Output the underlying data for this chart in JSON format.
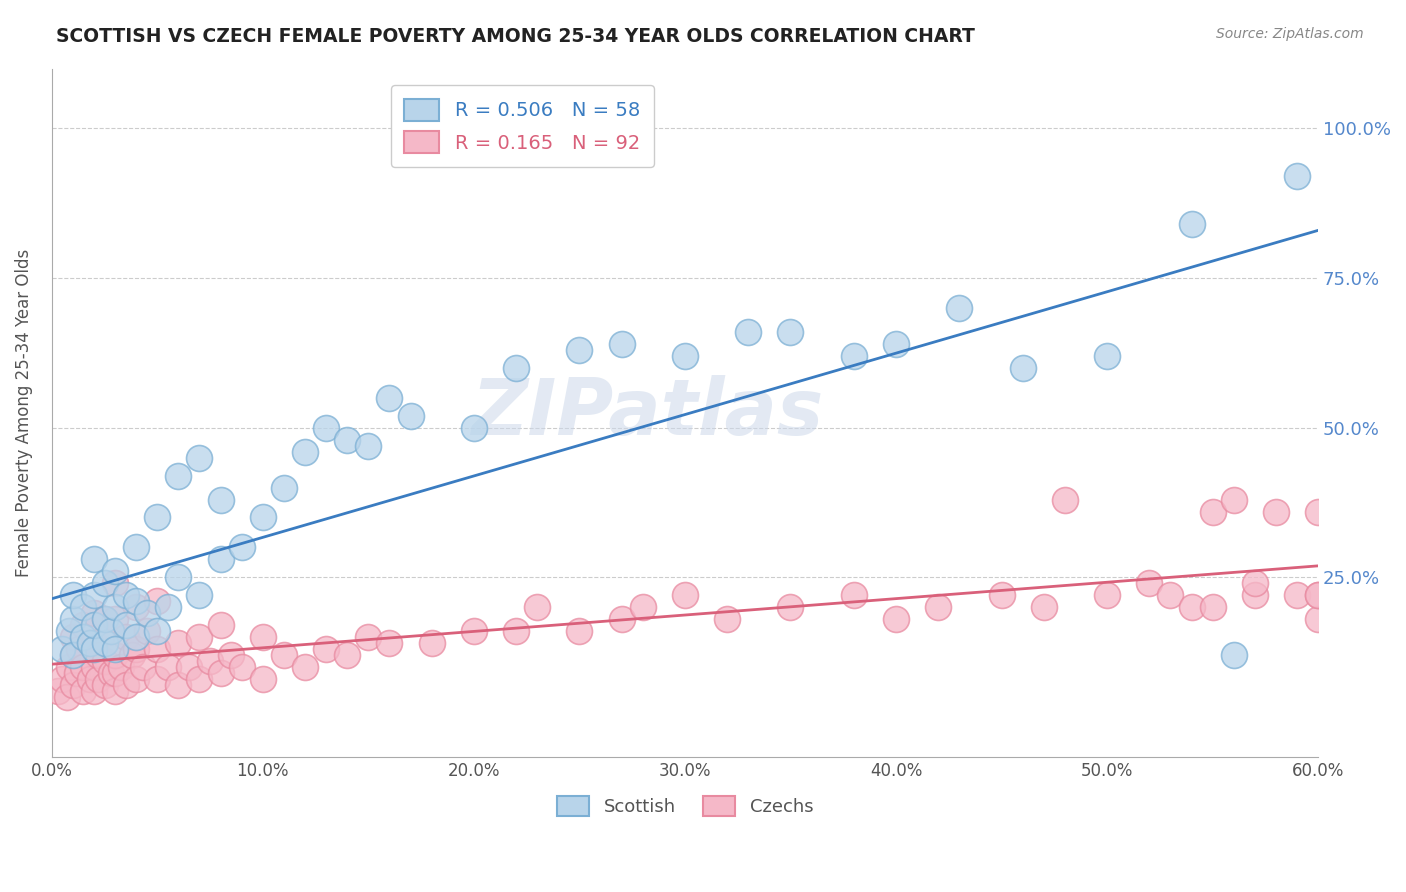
{
  "title": "SCOTTISH VS CZECH FEMALE POVERTY AMONG 25-34 YEAR OLDS CORRELATION CHART",
  "source": "Source: ZipAtlas.com",
  "ylabel": "Female Poverty Among 25-34 Year Olds",
  "xlim": [
    0.0,
    0.6
  ],
  "ylim": [
    -0.05,
    1.1
  ],
  "xtick_labels": [
    "0.0%",
    "10.0%",
    "20.0%",
    "30.0%",
    "40.0%",
    "50.0%",
    "60.0%"
  ],
  "xtick_vals": [
    0.0,
    0.1,
    0.2,
    0.3,
    0.4,
    0.5,
    0.6
  ],
  "ytick_labels": [
    "100.0%",
    "75.0%",
    "50.0%",
    "25.0%"
  ],
  "ytick_vals": [
    1.0,
    0.75,
    0.5,
    0.25
  ],
  "scottish_R": 0.506,
  "scottish_N": 58,
  "czech_R": 0.165,
  "czech_N": 92,
  "scottish_marker_fill": "#b8d4ea",
  "scottish_marker_edge": "#7bafd4",
  "czech_marker_fill": "#f5b8c8",
  "czech_marker_edge": "#e88aa0",
  "trend_scottish_color": "#3a7cc1",
  "trend_czech_color": "#d9607a",
  "watermark": "ZIPatlas",
  "grid_color": "#cccccc",
  "ytick_color": "#5588cc",
  "legend_text_scottish_color": "#3a7cc1",
  "legend_text_czech_color": "#d9607a",
  "scottish_x": [
    0.005,
    0.008,
    0.01,
    0.01,
    0.01,
    0.015,
    0.015,
    0.018,
    0.02,
    0.02,
    0.02,
    0.02,
    0.025,
    0.025,
    0.025,
    0.028,
    0.03,
    0.03,
    0.03,
    0.035,
    0.035,
    0.04,
    0.04,
    0.04,
    0.045,
    0.05,
    0.05,
    0.055,
    0.06,
    0.06,
    0.07,
    0.07,
    0.08,
    0.08,
    0.09,
    0.1,
    0.11,
    0.12,
    0.13,
    0.14,
    0.15,
    0.16,
    0.17,
    0.2,
    0.22,
    0.25,
    0.27,
    0.3,
    0.33,
    0.35,
    0.38,
    0.4,
    0.43,
    0.46,
    0.5,
    0.54,
    0.56,
    0.59
  ],
  "scottish_y": [
    0.13,
    0.16,
    0.12,
    0.18,
    0.22,
    0.15,
    0.2,
    0.14,
    0.13,
    0.17,
    0.22,
    0.28,
    0.14,
    0.18,
    0.24,
    0.16,
    0.13,
    0.2,
    0.26,
    0.17,
    0.22,
    0.15,
    0.21,
    0.3,
    0.19,
    0.16,
    0.35,
    0.2,
    0.25,
    0.42,
    0.22,
    0.45,
    0.28,
    0.38,
    0.3,
    0.35,
    0.4,
    0.46,
    0.5,
    0.48,
    0.47,
    0.55,
    0.52,
    0.5,
    0.6,
    0.63,
    0.64,
    0.62,
    0.66,
    0.66,
    0.62,
    0.64,
    0.7,
    0.6,
    0.62,
    0.84,
    0.12,
    0.92
  ],
  "czech_x": [
    0.003,
    0.005,
    0.007,
    0.008,
    0.01,
    0.01,
    0.01,
    0.012,
    0.013,
    0.015,
    0.015,
    0.015,
    0.018,
    0.018,
    0.02,
    0.02,
    0.02,
    0.02,
    0.022,
    0.022,
    0.025,
    0.025,
    0.025,
    0.028,
    0.028,
    0.03,
    0.03,
    0.03,
    0.03,
    0.03,
    0.033,
    0.035,
    0.035,
    0.038,
    0.04,
    0.04,
    0.04,
    0.043,
    0.045,
    0.05,
    0.05,
    0.05,
    0.055,
    0.06,
    0.06,
    0.065,
    0.07,
    0.07,
    0.075,
    0.08,
    0.08,
    0.085,
    0.09,
    0.1,
    0.1,
    0.11,
    0.12,
    0.13,
    0.14,
    0.15,
    0.16,
    0.18,
    0.2,
    0.22,
    0.23,
    0.25,
    0.27,
    0.28,
    0.3,
    0.32,
    0.35,
    0.38,
    0.4,
    0.42,
    0.45,
    0.47,
    0.48,
    0.5,
    0.52,
    0.53,
    0.54,
    0.55,
    0.55,
    0.56,
    0.57,
    0.57,
    0.58,
    0.59,
    0.6,
    0.6,
    0.6,
    0.6
  ],
  "czech_y": [
    0.06,
    0.08,
    0.05,
    0.1,
    0.07,
    0.12,
    0.15,
    0.09,
    0.13,
    0.06,
    0.1,
    0.17,
    0.08,
    0.14,
    0.06,
    0.1,
    0.14,
    0.19,
    0.08,
    0.12,
    0.07,
    0.11,
    0.18,
    0.09,
    0.16,
    0.06,
    0.09,
    0.12,
    0.18,
    0.24,
    0.1,
    0.07,
    0.15,
    0.12,
    0.08,
    0.13,
    0.2,
    0.1,
    0.16,
    0.08,
    0.13,
    0.21,
    0.1,
    0.07,
    0.14,
    0.1,
    0.08,
    0.15,
    0.11,
    0.09,
    0.17,
    0.12,
    0.1,
    0.08,
    0.15,
    0.12,
    0.1,
    0.13,
    0.12,
    0.15,
    0.14,
    0.14,
    0.16,
    0.16,
    0.2,
    0.16,
    0.18,
    0.2,
    0.22,
    0.18,
    0.2,
    0.22,
    0.18,
    0.2,
    0.22,
    0.2,
    0.38,
    0.22,
    0.24,
    0.22,
    0.2,
    0.36,
    0.2,
    0.38,
    0.22,
    0.24,
    0.36,
    0.22,
    0.18,
    0.22,
    0.36,
    0.22
  ]
}
